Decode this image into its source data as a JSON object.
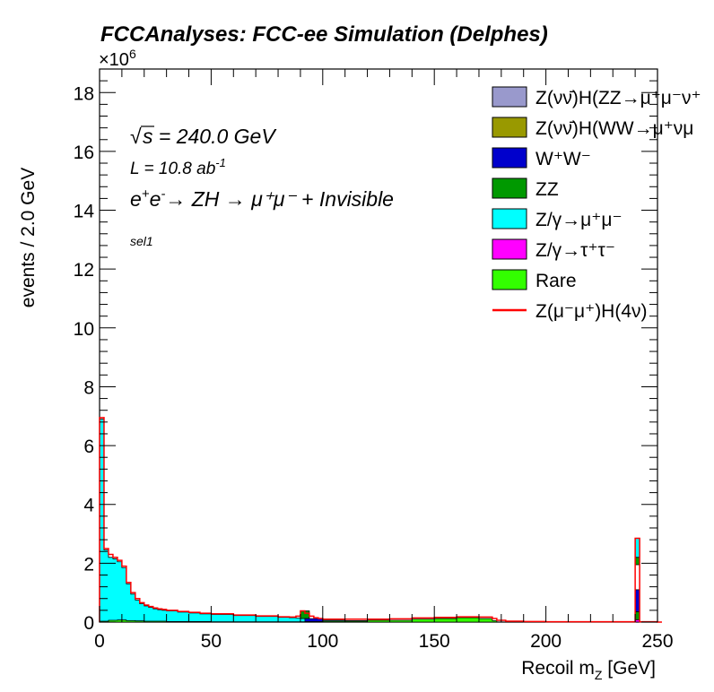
{
  "chart_data": {
    "type": "area",
    "title": "FCCAnalyses: FCC-ee Simulation (Delphes)",
    "exponent_label": "×10",
    "exponent_power": "6",
    "xlabel_main": "Recoil m",
    "xlabel_sub": "Z",
    "xlabel_unit": " [GeV]",
    "ylabel": "events / 2.0 GeV",
    "xlim": [
      0,
      250
    ],
    "ylim": [
      0,
      18.8
    ],
    "x_ticks": [
      0,
      50,
      100,
      150,
      200,
      250
    ],
    "x_tick_labels": [
      "0",
      "50",
      "100",
      "150",
      "200",
      "250"
    ],
    "y_ticks": [
      0,
      2,
      4,
      6,
      8,
      10,
      12,
      14,
      16,
      18
    ],
    "y_tick_labels": [
      "0",
      "2",
      "4",
      "6",
      "8",
      "10",
      "12",
      "14",
      "16",
      "18"
    ],
    "y_units": "events (×10^6)",
    "annotations": {
      "sqrt_s": "s = 240.0 GeV",
      "lumi_prefix": "L = 10.8 ab",
      "lumi_power": "-1",
      "process_prefix": "e",
      "process_text": "→ ZH → μ⁺μ⁻ + Invisible",
      "selection": "sel1"
    },
    "legend_placement": "top-right",
    "legend": [
      {
        "label": "Z(νν̄)H(ZZ→μ⁺μ⁻ν⁺",
        "color": "#9999cc",
        "kind": "box"
      },
      {
        "label": "Z(νν̄)H(WW→μ⁺νμ",
        "color": "#999900",
        "kind": "box"
      },
      {
        "label": "W⁺W⁻",
        "color": "#0000cc",
        "kind": "box"
      },
      {
        "label": "ZZ",
        "color": "#009900",
        "kind": "box"
      },
      {
        "label": "Z/γ→μ⁺μ⁻",
        "color": "#00ffff",
        "kind": "box"
      },
      {
        "label": "Z/γ→τ⁺τ⁻",
        "color": "#ff00ff",
        "kind": "box"
      },
      {
        "label": "Rare",
        "color": "#33ff00",
        "kind": "box"
      },
      {
        "label": "Z(μ⁻μ⁺)H(4ν)",
        "color": "#ff0000",
        "kind": "line"
      }
    ],
    "bin_width": 2.0,
    "series": [
      {
        "name": "Z/γ→μ⁺μ⁻",
        "color": "#00ffff",
        "x": [
          0,
          2,
          4,
          6,
          8,
          10,
          12,
          14,
          16,
          18,
          20,
          22,
          24,
          26,
          28,
          30,
          35,
          40,
          45,
          50,
          60,
          70,
          80,
          85,
          88,
          90,
          92,
          94,
          96,
          100,
          110,
          120,
          130,
          140,
          150,
          160,
          170,
          178,
          182
        ],
        "values": [
          6.9,
          2.45,
          2.2,
          2.15,
          2.05,
          1.85,
          1.3,
          0.95,
          0.75,
          0.62,
          0.55,
          0.5,
          0.45,
          0.42,
          0.4,
          0.38,
          0.34,
          0.31,
          0.28,
          0.26,
          0.22,
          0.19,
          0.16,
          0.15,
          0.14,
          0.12,
          0.1,
          0.09,
          0.08,
          0.06,
          0.05,
          0.04,
          0.03,
          0.02,
          0.015,
          0.01,
          0.005,
          0.002,
          0.0
        ]
      },
      {
        "name": "Rare",
        "color": "#33ff00",
        "x": [
          0,
          4,
          8,
          12,
          16,
          20,
          30,
          50,
          80,
          100,
          120,
          140,
          150,
          160,
          170,
          176,
          178
        ],
        "values": [
          0.03,
          0.06,
          0.07,
          0.05,
          0.04,
          0.03,
          0.02,
          0.01,
          0.01,
          0.03,
          0.06,
          0.1,
          0.12,
          0.15,
          0.12,
          0.05,
          0.0
        ]
      },
      {
        "name": "W⁺W⁻ (peak at 240)",
        "color": "#0000cc",
        "x": [
          240
        ],
        "values": [
          1.1
        ]
      },
      {
        "name": "ZZ (peak at 240)",
        "color": "#009900",
        "x": [
          240
        ],
        "values": [
          0.35
        ]
      }
    ],
    "total_outline": {
      "x": [
        0,
        2,
        4,
        6,
        8,
        10,
        12,
        14,
        16,
        18,
        20,
        22,
        24,
        26,
        28,
        30,
        35,
        40,
        45,
        50,
        60,
        70,
        80,
        85,
        88,
        90,
        92,
        94,
        96,
        98,
        100,
        110,
        120,
        130,
        140,
        150,
        160,
        170,
        176,
        178,
        182,
        190,
        200,
        210,
        220,
        230,
        238,
        240,
        242,
        250
      ],
      "values": [
        6.95,
        2.5,
        2.3,
        2.2,
        2.1,
        1.9,
        1.35,
        1.0,
        0.8,
        0.66,
        0.58,
        0.53,
        0.48,
        0.45,
        0.43,
        0.4,
        0.36,
        0.33,
        0.3,
        0.28,
        0.24,
        0.21,
        0.18,
        0.17,
        0.2,
        0.38,
        0.3,
        0.2,
        0.15,
        0.12,
        0.1,
        0.1,
        0.1,
        0.11,
        0.14,
        0.16,
        0.18,
        0.17,
        0.12,
        0.06,
        0.03,
        0.02,
        0.01,
        0.01,
        0.01,
        0.01,
        0.01,
        2.85,
        0.01,
        0.0
      ]
    },
    "signal_peak_240": 2.85
  }
}
